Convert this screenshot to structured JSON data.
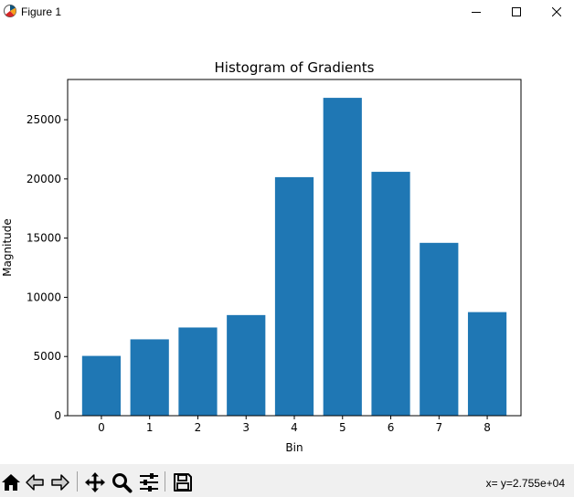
{
  "window": {
    "title": "Figure 1"
  },
  "toolbar": {
    "coord_readout": "x= y=2.755e+04"
  },
  "colors": {
    "bar": "#1f77b4",
    "axis": "#000000",
    "toolbar_bg": "#f0f0f0"
  },
  "chart_data": {
    "type": "bar",
    "title": "Histogram of Gradients",
    "xlabel": "Bin",
    "ylabel": "Magnitude",
    "categories": [
      "0",
      "1",
      "2",
      "3",
      "4",
      "5",
      "6",
      "7",
      "8"
    ],
    "values": [
      5050,
      6450,
      7450,
      8500,
      20150,
      26850,
      20600,
      14600,
      8750
    ],
    "ylim": [
      0,
      28400
    ],
    "yticks": [
      0,
      5000,
      10000,
      15000,
      20000,
      25000
    ],
    "ytick_labels": [
      "0",
      "5000",
      "10000",
      "15000",
      "20000",
      "25000"
    ],
    "grid": false,
    "legend": "none"
  }
}
